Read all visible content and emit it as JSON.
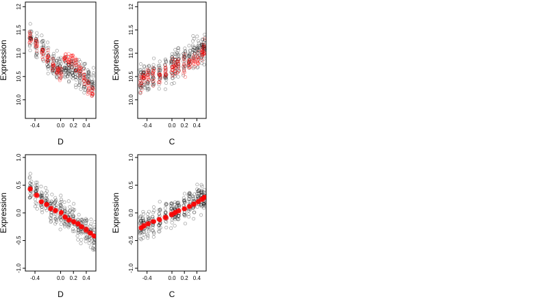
{
  "chart_data": [
    {
      "type": "scatter",
      "title": "",
      "xlabel": "D",
      "ylabel": "Expression",
      "xlim": [
        -0.55,
        0.55
      ],
      "ylim": [
        9.6,
        12.1
      ],
      "x_ticks": [
        -0.4,
        0.0,
        0.2,
        0.4
      ],
      "x_tick_labels": [
        "-0.4",
        "0.0",
        "0.2",
        "0.4"
      ],
      "y_ticks": [
        10.0,
        10.5,
        11.0,
        11.5,
        12.0
      ],
      "y_tick_labels": [
        "10.0",
        "10.5",
        "11.0",
        "11.5",
        "12"
      ],
      "grid": false,
      "x_groups": [
        -0.47,
        -0.38,
        -0.28,
        -0.2,
        -0.12,
        -0.05,
        0.0,
        0.07,
        0.12,
        0.18,
        0.24,
        0.3,
        0.37,
        0.43,
        0.5
      ],
      "series": [
        {
          "color": "#000000",
          "marker": "open-circle",
          "mean_y": [
            11.35,
            11.2,
            11.1,
            10.9,
            10.75,
            10.7,
            10.6,
            10.75,
            10.65,
            10.7,
            10.6,
            10.5,
            10.45,
            10.4,
            10.35
          ],
          "spread": 0.35
        },
        {
          "color": "#ff0000",
          "marker": "open-circle",
          "mean_y": [
            11.35,
            11.2,
            11.0,
            10.9,
            10.75,
            10.65,
            10.55,
            10.9,
            10.85,
            10.85,
            10.75,
            10.65,
            10.45,
            10.3,
            10.15
          ],
          "spread": 0.18
        }
      ]
    },
    {
      "type": "scatter",
      "title": "",
      "xlabel": "C",
      "ylabel": "Expression",
      "xlim": [
        -0.55,
        0.55
      ],
      "ylim": [
        9.6,
        12.1
      ],
      "x_ticks": [
        -0.4,
        0.0,
        0.2,
        0.4
      ],
      "x_tick_labels": [
        "-0.4",
        "0.0",
        "0.2",
        "0.4"
      ],
      "y_ticks": [
        10.0,
        10.5,
        11.0,
        11.5,
        12.0
      ],
      "y_tick_labels": [
        "10.0",
        "10.5",
        "11.0",
        "11.5",
        "12"
      ],
      "grid": false,
      "x_groups": [
        -0.5,
        -0.45,
        -0.38,
        -0.3,
        -0.2,
        -0.1,
        0.0,
        0.05,
        0.1,
        0.2,
        0.28,
        0.35,
        0.42,
        0.48,
        0.52
      ],
      "series": [
        {
          "color": "#000000",
          "marker": "open-circle",
          "mean_y": [
            10.4,
            10.45,
            10.5,
            10.5,
            10.55,
            10.6,
            10.7,
            10.75,
            10.8,
            10.85,
            10.9,
            10.95,
            11.0,
            11.05,
            11.1
          ],
          "spread": 0.4
        },
        {
          "color": "#ff0000",
          "marker": "open-circle",
          "mean_y": [
            10.4,
            10.45,
            10.5,
            10.5,
            10.5,
            10.55,
            10.65,
            10.7,
            10.7,
            10.75,
            10.8,
            10.85,
            10.9,
            11.0,
            11.1
          ],
          "spread": 0.25
        }
      ]
    },
    {
      "type": "scatter",
      "title": "",
      "xlabel": "D",
      "ylabel": "Expression",
      "xlim": [
        -0.55,
        0.55
      ],
      "ylim": [
        -1.05,
        1.05
      ],
      "x_ticks": [
        -0.4,
        0.0,
        0.2,
        0.4
      ],
      "x_tick_labels": [
        "-0.4",
        "0.0",
        "0.2",
        "0.4"
      ],
      "y_ticks": [
        -1.0,
        -0.5,
        0.0,
        0.5,
        1.0
      ],
      "y_tick_labels": [
        "-1.0",
        "-0.5",
        "0.0",
        "0.5",
        "1.0"
      ],
      "grid": false,
      "x_groups": [
        -0.47,
        -0.38,
        -0.3,
        -0.22,
        -0.15,
        -0.08,
        0.0,
        0.07,
        0.13,
        0.2,
        0.27,
        0.33,
        0.4,
        0.46,
        0.52
      ],
      "series": [
        {
          "color": "#000000",
          "marker": "open-circle",
          "mean_y": [
            0.45,
            0.35,
            0.25,
            0.2,
            0.1,
            0.05,
            0.0,
            -0.05,
            -0.1,
            -0.15,
            -0.2,
            -0.25,
            -0.3,
            -0.4,
            -0.45
          ],
          "spread": 0.3
        },
        {
          "color": "#ff0000",
          "marker": "filled-dot",
          "mean_y": [
            0.43,
            0.32,
            0.2,
            0.15,
            0.08,
            0.04,
            0.0,
            -0.08,
            -0.12,
            -0.16,
            -0.2,
            -0.25,
            -0.3,
            -0.36,
            -0.42
          ],
          "spread": 0.02
        }
      ]
    },
    {
      "type": "scatter",
      "title": "",
      "xlabel": "C",
      "ylabel": "Expression",
      "xlim": [
        -0.55,
        0.55
      ],
      "ylim": [
        -1.05,
        1.05
      ],
      "x_ticks": [
        -0.4,
        0.0,
        0.2,
        0.4
      ],
      "x_tick_labels": [
        "-0.4",
        "0.0",
        "0.2",
        "0.4"
      ],
      "y_ticks": [
        -1.0,
        -0.5,
        0.0,
        0.5,
        1.0
      ],
      "y_tick_labels": [
        "-1.0",
        "-0.5",
        "0.0",
        "0.5",
        "1.0"
      ],
      "grid": false,
      "x_groups": [
        -0.5,
        -0.45,
        -0.38,
        -0.3,
        -0.2,
        -0.1,
        0.0,
        0.05,
        0.1,
        0.2,
        0.28,
        0.35,
        0.42,
        0.48,
        0.52
      ],
      "series": [
        {
          "color": "#000000",
          "marker": "open-circle",
          "mean_y": [
            -0.25,
            -0.2,
            -0.2,
            -0.15,
            -0.1,
            -0.05,
            0.0,
            0.02,
            0.05,
            0.1,
            0.15,
            0.2,
            0.25,
            0.28,
            0.3
          ],
          "spread": 0.3
        },
        {
          "color": "#ff0000",
          "marker": "filled-dot",
          "mean_y": [
            -0.27,
            -0.24,
            -0.2,
            -0.16,
            -0.12,
            -0.08,
            -0.03,
            0.0,
            0.04,
            0.08,
            0.12,
            0.16,
            0.2,
            0.24,
            0.28
          ],
          "spread": 0.02
        }
      ]
    }
  ]
}
